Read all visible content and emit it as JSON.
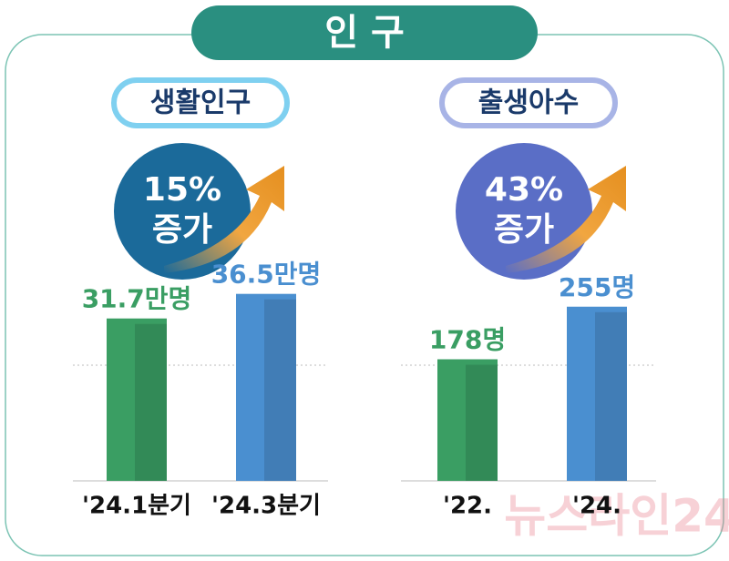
{
  "title": "인 구",
  "watermark": "뉴스라인24",
  "chart_data": [
    {
      "type": "bar",
      "title": "생활인구",
      "annotations": [
        "15%",
        "증가"
      ],
      "categories": [
        "'24.1분기",
        "'24.3분기"
      ],
      "values": [
        31.7,
        36.5
      ],
      "value_labels": [
        "31.7만명",
        "36.5만명"
      ],
      "colors": [
        "#3a9e63",
        "#4a8fd0"
      ],
      "ylim": [
        0,
        40
      ]
    },
    {
      "type": "bar",
      "title": "출생아수",
      "annotations": [
        "43%",
        "증가"
      ],
      "categories": [
        "'22.",
        "'24."
      ],
      "values": [
        178,
        255
      ],
      "value_labels": [
        "178명",
        "255명"
      ],
      "colors": [
        "#3a9e63",
        "#4a8fd0"
      ],
      "ylim": [
        0,
        300
      ]
    }
  ]
}
